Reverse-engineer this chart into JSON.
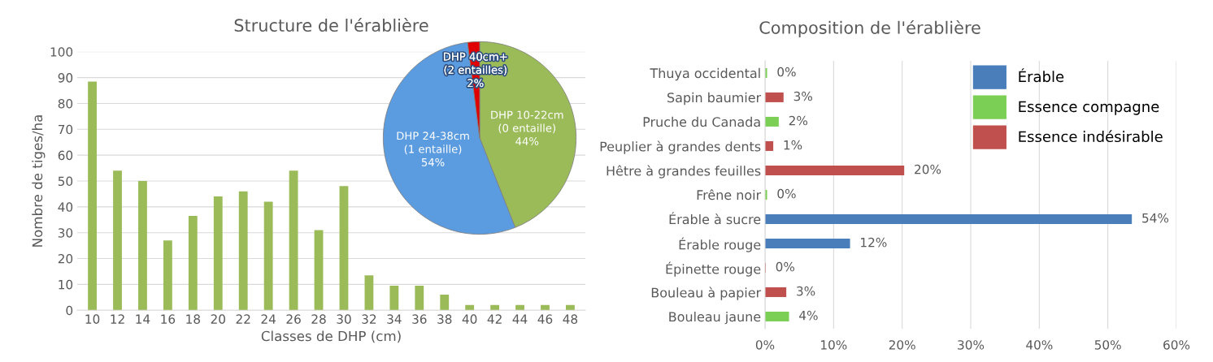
{
  "chart_data": [
    {
      "type": "bar",
      "title": "Structure de l'érablière",
      "xlabel": "Classes de DHP (cm)",
      "ylabel": "Nombre de tiges/ha",
      "categories": [
        "10",
        "12",
        "14",
        "16",
        "18",
        "20",
        "22",
        "24",
        "26",
        "28",
        "30",
        "32",
        "34",
        "36",
        "38",
        "40",
        "42",
        "44",
        "46",
        "48"
      ],
      "values": [
        88.5,
        54,
        50,
        27,
        36.5,
        44,
        46,
        42,
        54,
        31,
        48,
        13.5,
        9.5,
        9.5,
        6,
        2,
        2,
        2,
        2,
        2
      ],
      "color": "#9bbb59",
      "ylim": [
        0,
        100
      ],
      "yticks": [
        0,
        10,
        20,
        30,
        40,
        50,
        60,
        70,
        80,
        90,
        100
      ],
      "grid": "y",
      "legend": false
    },
    {
      "type": "pie",
      "categories": [
        "DHP 10-22cm\n(0 entaille)",
        "DHP 24-38cm\n(1 entaille)",
        "DHP 40cm+\n(2 entailles)"
      ],
      "values": [
        44,
        54,
        2
      ],
      "value_labels": [
        "44%",
        "54%",
        "2%"
      ],
      "colors": [
        "#9bbb59",
        "#5b9be0",
        "#e00000"
      ],
      "legend": false
    },
    {
      "type": "bar",
      "orientation": "horizontal",
      "title": "Composition de l'érablière",
      "categories": [
        "Thuya occidental",
        "Sapin baumier",
        "Pruche du Canada",
        "Peuplier à grandes dents",
        "Hêtre à grandes feuilles",
        "Frêne noir",
        "Érable à sucre",
        "Érable rouge",
        "Épinette rouge",
        "Bouleau à papier",
        "Bouleau jaune"
      ],
      "series": [
        {
          "name": "Érable",
          "color": "#4a7ebb",
          "values": [
            null,
            null,
            null,
            null,
            null,
            null,
            53.5,
            12.4,
            null,
            null,
            null
          ],
          "value_labels": [
            null,
            null,
            null,
            null,
            null,
            null,
            "54%",
            "12%",
            null,
            null,
            null
          ]
        },
        {
          "name": "Essence compagne",
          "color": "#7ccf55",
          "values": [
            0.3,
            null,
            2.0,
            null,
            null,
            0.3,
            null,
            null,
            null,
            null,
            3.5
          ],
          "value_labels": [
            "0%",
            null,
            "2%",
            null,
            null,
            "0%",
            null,
            null,
            null,
            null,
            "4%"
          ]
        },
        {
          "name": "Essence indésirable",
          "color": "#c0504d",
          "values": [
            null,
            2.7,
            null,
            1.2,
            20.3,
            null,
            null,
            null,
            0.1,
            3.1,
            null
          ],
          "value_labels": [
            null,
            "3%",
            null,
            "1%",
            "20%",
            null,
            null,
            null,
            "0%",
            "3%",
            null
          ]
        }
      ],
      "xlim": [
        0,
        60
      ],
      "xticks": [
        {
          "value": 0,
          "label": "0%"
        },
        {
          "value": 10,
          "label": "10%"
        },
        {
          "value": 20,
          "label": "20%"
        },
        {
          "value": 30,
          "label": "30%"
        },
        {
          "value": 40,
          "label": "40%"
        },
        {
          "value": 50,
          "label": "50%"
        },
        {
          "value": 60,
          "label": "60%"
        }
      ],
      "grid": "x",
      "legend": "top right"
    }
  ]
}
